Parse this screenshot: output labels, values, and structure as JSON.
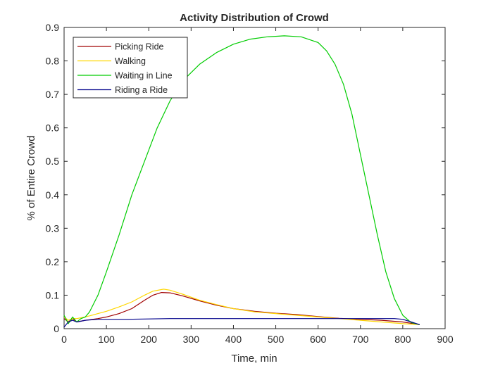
{
  "chart_data": {
    "type": "line",
    "title": "Activity Distribution of Crowd",
    "xlabel": "Time, min",
    "ylabel": "% of Entire Crowd",
    "xlim": [
      0,
      900
    ],
    "ylim": [
      0,
      0.9
    ],
    "xticks": [
      0,
      100,
      200,
      300,
      400,
      500,
      600,
      700,
      800,
      900
    ],
    "yticks": [
      0,
      0.1,
      0.2,
      0.3,
      0.4,
      0.5,
      0.6,
      0.7,
      0.8,
      0.9
    ],
    "grid": false,
    "legend_position": "top-left",
    "series": [
      {
        "name": "Picking Ride",
        "color": "#a00000",
        "x": [
          0,
          10,
          20,
          30,
          50,
          80,
          100,
          130,
          160,
          190,
          210,
          230,
          250,
          280,
          320,
          360,
          400,
          450,
          500,
          550,
          600,
          650,
          700,
          750,
          800,
          840
        ],
        "y": [
          0.03,
          0.02,
          0.03,
          0.02,
          0.025,
          0.03,
          0.035,
          0.045,
          0.06,
          0.085,
          0.1,
          0.108,
          0.107,
          0.098,
          0.083,
          0.07,
          0.06,
          0.052,
          0.046,
          0.042,
          0.036,
          0.031,
          0.028,
          0.025,
          0.02,
          0.012
        ]
      },
      {
        "name": "Walking",
        "color": "#ffd700",
        "x": [
          0,
          10,
          20,
          30,
          50,
          80,
          100,
          130,
          160,
          190,
          210,
          235,
          250,
          280,
          320,
          360,
          400,
          450,
          500,
          550,
          600,
          650,
          700,
          750,
          800,
          840
        ],
        "y": [
          0.035,
          0.025,
          0.03,
          0.03,
          0.035,
          0.045,
          0.052,
          0.065,
          0.08,
          0.1,
          0.112,
          0.118,
          0.115,
          0.103,
          0.085,
          0.072,
          0.06,
          0.05,
          0.045,
          0.04,
          0.035,
          0.03,
          0.025,
          0.02,
          0.015,
          0.012
        ]
      },
      {
        "name": "Waiting in Line",
        "color": "#00cc00",
        "x": [
          0,
          10,
          20,
          30,
          40,
          50,
          60,
          80,
          100,
          130,
          160,
          190,
          220,
          250,
          280,
          320,
          360,
          400,
          440,
          480,
          520,
          560,
          600,
          620,
          640,
          660,
          680,
          700,
          720,
          740,
          760,
          780,
          800,
          820,
          840
        ],
        "y": [
          0.04,
          0.015,
          0.035,
          0.02,
          0.03,
          0.035,
          0.05,
          0.1,
          0.17,
          0.28,
          0.4,
          0.5,
          0.6,
          0.68,
          0.74,
          0.79,
          0.825,
          0.85,
          0.865,
          0.872,
          0.875,
          0.872,
          0.855,
          0.83,
          0.79,
          0.73,
          0.64,
          0.52,
          0.4,
          0.28,
          0.17,
          0.09,
          0.04,
          0.018,
          0.012
        ]
      },
      {
        "name": "Riding a Ride",
        "color": "#00008b",
        "x": [
          0,
          10,
          20,
          30,
          50,
          80,
          100,
          150,
          200,
          250,
          300,
          400,
          500,
          600,
          700,
          780,
          800,
          820,
          840
        ],
        "y": [
          0.005,
          0.02,
          0.025,
          0.02,
          0.025,
          0.028,
          0.028,
          0.028,
          0.029,
          0.03,
          0.03,
          0.03,
          0.03,
          0.03,
          0.03,
          0.03,
          0.028,
          0.02,
          0.012
        ]
      }
    ]
  }
}
